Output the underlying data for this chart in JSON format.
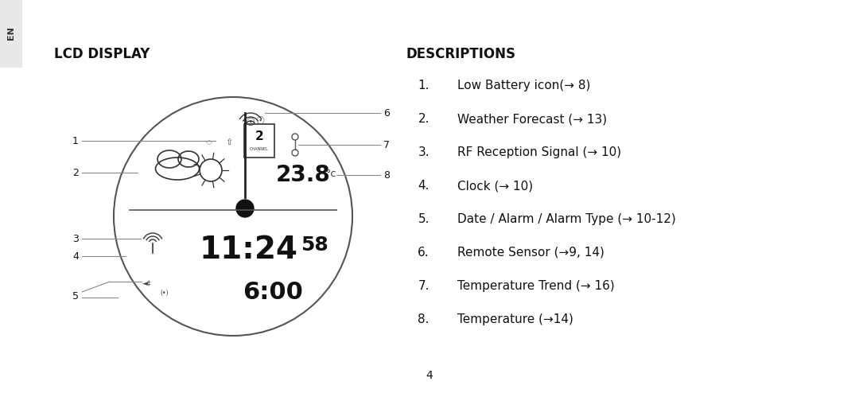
{
  "title_left": "LCD DISPLAY",
  "title_right": "DESCRIPTIONS",
  "tab_label": "EN",
  "page_number": "4",
  "descriptions": [
    {
      "num": "1.",
      "text": "Low Battery icon(→ 8)"
    },
    {
      "num": "2.",
      "text": "Weather Forecast (→ 13)"
    },
    {
      "num": "3.",
      "text": "RF Reception Signal (→ 10)"
    },
    {
      "num": "4.",
      "text": "Clock (→ 10)"
    },
    {
      "num": "5.",
      "text": "Date / Alarm / Alarm Type (→ 10-12)"
    },
    {
      "num": "6.",
      "text": "Remote Sensor (→9, 14)"
    },
    {
      "num": "7.",
      "text": "Temperature Trend (→ 16)"
    },
    {
      "num": "8.",
      "text": "Temperature (→14)"
    }
  ],
  "bg_color": "#ffffff",
  "text_color": "#111111",
  "tab_bg": "#e8e8e8",
  "fig_w": 10.8,
  "fig_h": 4.94,
  "dpi": 100
}
